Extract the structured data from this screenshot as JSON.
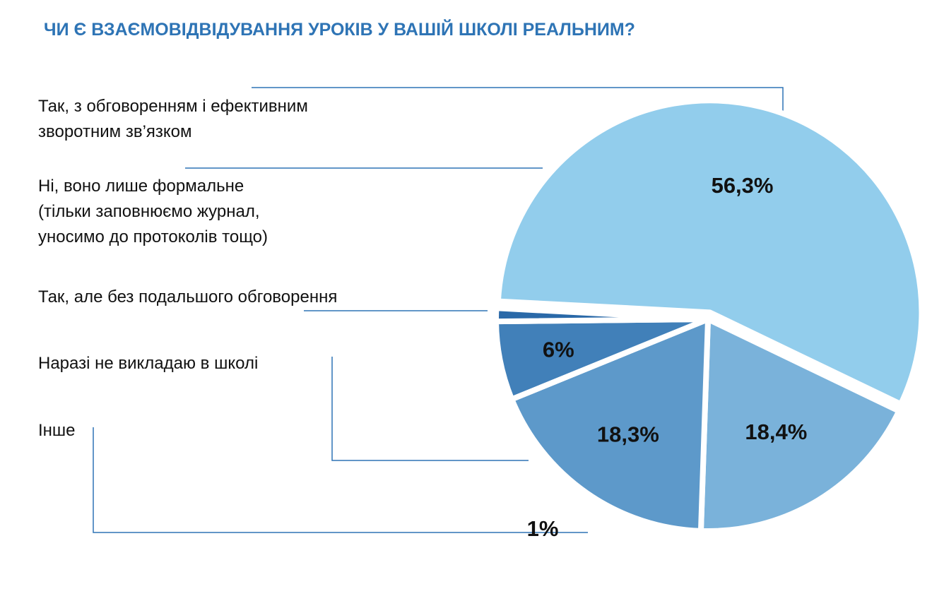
{
  "colors": {
    "title": "#2E74B5",
    "leader": "#2E74B5"
  },
  "chart_data": {
    "type": "pie",
    "title": "ЧИ Є ВЗАЄМОВІДВІДУВАННЯ УРОКІВ У ВАШІЙ ШКОЛІ РЕАЛЬНИМ?",
    "legend": "left",
    "slices": [
      {
        "label_lines": [
          "Так, з обговоренням і ефективним",
          "зворотним зв’язком"
        ],
        "value": 56.3,
        "value_label": "56,3%",
        "color": "#92CDEC",
        "exploded": true
      },
      {
        "label_lines": [
          "Ні, воно лише формальне",
          "(тільки заповнюємо журнал,",
          "уносимо до протоколів тощо)"
        ],
        "value": 18.4,
        "value_label": "18,4%",
        "color": "#7AB2DA",
        "exploded": false
      },
      {
        "label_lines": [
          "Так, але без подальшого обговорення"
        ],
        "value": 18.3,
        "value_label": "18,3%",
        "color": "#5D99CA",
        "exploded": false
      },
      {
        "label_lines": [
          "Наразі не викладаю в школі"
        ],
        "value": 6,
        "value_label": "6%",
        "color": "#4180B9",
        "exploded": false
      },
      {
        "label_lines": [
          "Інше"
        ],
        "value": 1,
        "value_label": "1%",
        "color": "#2A69A8",
        "exploded": false
      }
    ]
  }
}
